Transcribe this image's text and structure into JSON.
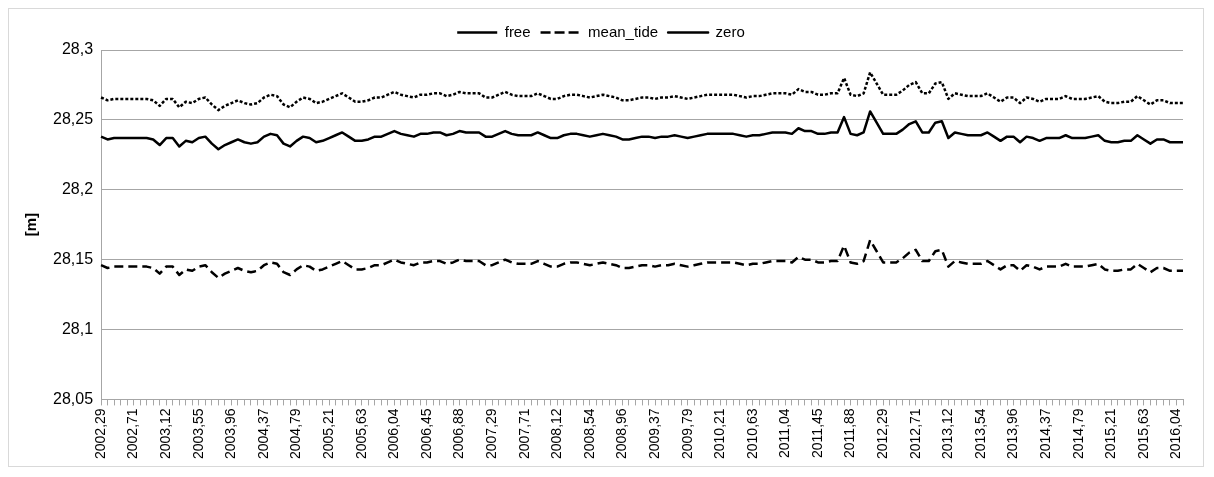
{
  "chart_data": {
    "type": "line",
    "ylabel": "[m]",
    "legend": "top",
    "grid": "y",
    "marker": "none",
    "ylim": [
      28.05,
      28.3
    ],
    "yticks": [
      {
        "value": 28.05,
        "label": "28,05"
      },
      {
        "value": 28.1,
        "label": "28,1"
      },
      {
        "value": 28.15,
        "label": "28,15"
      },
      {
        "value": 28.2,
        "label": "28,2"
      },
      {
        "value": 28.25,
        "label": "28,25"
      },
      {
        "value": 28.3,
        "label": "28,3"
      }
    ],
    "categories": [
      "2002,29",
      null,
      null,
      null,
      null,
      "2002,71",
      null,
      null,
      null,
      null,
      "2003,12",
      null,
      null,
      null,
      null,
      "2003,55",
      null,
      null,
      null,
      null,
      "2003,96",
      null,
      null,
      null,
      null,
      "2004,37",
      null,
      null,
      null,
      null,
      "2004,79",
      null,
      null,
      null,
      null,
      "2005,21",
      null,
      null,
      null,
      null,
      "2005,63",
      null,
      null,
      null,
      null,
      "2006,04",
      null,
      null,
      null,
      null,
      "2006,45",
      null,
      null,
      null,
      null,
      "2006,88",
      null,
      null,
      null,
      null,
      "2007,29",
      null,
      null,
      null,
      null,
      "2007,71",
      null,
      null,
      null,
      null,
      "2008,12",
      null,
      null,
      null,
      null,
      "2008,54",
      null,
      null,
      null,
      null,
      "2008,96",
      null,
      null,
      null,
      null,
      "2009,37",
      null,
      null,
      null,
      null,
      "2009,79",
      null,
      null,
      null,
      null,
      "2010,21",
      null,
      null,
      null,
      null,
      "2010,63",
      null,
      null,
      null,
      null,
      "2011,04",
      null,
      null,
      null,
      null,
      "2011,45",
      null,
      null,
      null,
      null,
      "2011,88",
      null,
      null,
      null,
      null,
      "2012,29",
      null,
      null,
      null,
      null,
      "2012,71",
      null,
      null,
      null,
      null,
      "2013,12",
      null,
      null,
      null,
      null,
      "2013,54",
      null,
      null,
      null,
      null,
      "2013,96",
      null,
      null,
      null,
      null,
      "2014,37",
      null,
      null,
      null,
      null,
      "2014,79",
      null,
      null,
      null,
      null,
      "2015,21",
      null,
      null,
      null,
      null,
      "2015,63",
      null,
      null,
      null,
      null,
      "2016,04",
      null
    ],
    "series": [
      {
        "name": "free",
        "color": "#000000",
        "line_style": "dotted",
        "values": [
          28.266,
          28.264,
          28.265,
          28.265,
          28.265,
          28.265,
          28.265,
          28.265,
          28.264,
          28.26,
          28.265,
          28.265,
          28.259,
          28.263,
          28.262,
          28.265,
          28.266,
          28.261,
          28.257,
          28.26,
          28.262,
          28.264,
          28.262,
          28.261,
          28.262,
          28.266,
          28.268,
          28.267,
          28.261,
          28.259,
          28.263,
          28.266,
          28.265,
          28.262,
          28.263,
          28.265,
          28.267,
          28.269,
          28.266,
          28.263,
          28.263,
          28.264,
          28.266,
          28.266,
          28.268,
          28.27,
          28.268,
          28.267,
          28.266,
          28.268,
          28.268,
          28.269,
          28.269,
          28.267,
          28.268,
          28.27,
          28.269,
          28.269,
          28.269,
          28.266,
          28.266,
          28.268,
          28.27,
          28.268,
          28.267,
          28.267,
          28.267,
          28.269,
          28.267,
          28.265,
          28.265,
          28.267,
          28.268,
          28.268,
          28.267,
          28.266,
          28.267,
          28.268,
          28.267,
          28.266,
          28.264,
          28.264,
          28.265,
          28.266,
          28.266,
          28.265,
          28.266,
          28.266,
          28.267,
          28.266,
          28.265,
          28.266,
          28.267,
          28.268,
          28.268,
          28.268,
          28.268,
          28.268,
          28.267,
          28.266,
          28.267,
          28.267,
          28.268,
          28.269,
          28.269,
          28.269,
          28.268,
          28.272,
          28.27,
          28.27,
          28.268,
          28.268,
          28.269,
          28.269,
          28.28,
          28.268,
          28.267,
          28.269,
          28.284,
          28.276,
          28.268,
          28.268,
          28.268,
          28.271,
          28.275,
          28.277,
          28.269,
          28.269,
          28.276,
          28.277,
          28.265,
          28.269,
          28.268,
          28.267,
          28.267,
          28.267,
          28.269,
          28.266,
          28.263,
          28.266,
          28.266,
          28.262,
          28.266,
          28.265,
          28.263,
          28.265,
          28.265,
          28.265,
          28.267,
          28.265,
          28.265,
          28.265,
          28.266,
          28.267,
          28.263,
          28.262,
          28.262,
          28.263,
          28.263,
          28.267,
          28.264,
          28.261,
          28.264,
          28.264,
          28.262,
          28.262,
          28.262
        ]
      },
      {
        "name": "mean_tide",
        "color": "#000000",
        "line_style": "dashed",
        "values": [
          28.146,
          28.144,
          28.145,
          28.145,
          28.145,
          28.145,
          28.145,
          28.145,
          28.144,
          28.14,
          28.145,
          28.145,
          28.139,
          28.143,
          28.142,
          28.145,
          28.146,
          28.141,
          28.137,
          28.14,
          28.142,
          28.144,
          28.142,
          28.141,
          28.142,
          28.146,
          28.148,
          28.147,
          28.141,
          28.139,
          28.143,
          28.146,
          28.145,
          28.142,
          28.143,
          28.145,
          28.147,
          28.149,
          28.146,
          28.143,
          28.143,
          28.144,
          28.146,
          28.146,
          28.148,
          28.15,
          28.148,
          28.147,
          28.146,
          28.148,
          28.148,
          28.149,
          28.149,
          28.147,
          28.148,
          28.15,
          28.149,
          28.149,
          28.149,
          28.146,
          28.146,
          28.148,
          28.15,
          28.148,
          28.147,
          28.147,
          28.147,
          28.149,
          28.147,
          28.145,
          28.145,
          28.147,
          28.148,
          28.148,
          28.147,
          28.146,
          28.147,
          28.148,
          28.147,
          28.146,
          28.144,
          28.144,
          28.145,
          28.146,
          28.146,
          28.145,
          28.146,
          28.146,
          28.147,
          28.146,
          28.145,
          28.146,
          28.147,
          28.148,
          28.148,
          28.148,
          28.148,
          28.148,
          28.147,
          28.146,
          28.147,
          28.147,
          28.148,
          28.149,
          28.149,
          28.149,
          28.148,
          28.152,
          28.15,
          28.15,
          28.148,
          28.148,
          28.149,
          28.149,
          28.16,
          28.148,
          28.147,
          28.149,
          28.164,
          28.156,
          28.148,
          28.148,
          28.148,
          28.151,
          28.155,
          28.157,
          28.149,
          28.149,
          28.156,
          28.157,
          28.145,
          28.149,
          28.148,
          28.147,
          28.147,
          28.147,
          28.149,
          28.146,
          28.143,
          28.146,
          28.146,
          28.142,
          28.146,
          28.145,
          28.143,
          28.145,
          28.145,
          28.145,
          28.147,
          28.145,
          28.145,
          28.145,
          28.146,
          28.147,
          28.143,
          28.142,
          28.142,
          28.143,
          28.143,
          28.147,
          28.144,
          28.141,
          28.144,
          28.144,
          28.142,
          28.142,
          28.142
        ]
      },
      {
        "name": "zero",
        "color": "#000000",
        "line_style": "solid",
        "values": [
          28.238,
          28.236,
          28.237,
          28.237,
          28.237,
          28.237,
          28.237,
          28.237,
          28.236,
          28.232,
          28.237,
          28.237,
          28.231,
          28.235,
          28.234,
          28.237,
          28.238,
          28.233,
          28.229,
          28.232,
          28.234,
          28.236,
          28.234,
          28.233,
          28.234,
          28.238,
          28.24,
          28.239,
          28.233,
          28.231,
          28.235,
          28.238,
          28.237,
          28.234,
          28.235,
          28.237,
          28.239,
          28.241,
          28.238,
          28.235,
          28.235,
          28.236,
          28.238,
          28.238,
          28.24,
          28.242,
          28.24,
          28.239,
          28.238,
          28.24,
          28.24,
          28.241,
          28.241,
          28.239,
          28.24,
          28.242,
          28.241,
          28.241,
          28.241,
          28.238,
          28.238,
          28.24,
          28.242,
          28.24,
          28.239,
          28.239,
          28.239,
          28.241,
          28.239,
          28.237,
          28.237,
          28.239,
          28.24,
          28.24,
          28.239,
          28.238,
          28.239,
          28.24,
          28.239,
          28.238,
          28.236,
          28.236,
          28.237,
          28.238,
          28.238,
          28.237,
          28.238,
          28.238,
          28.239,
          28.238,
          28.237,
          28.238,
          28.239,
          28.24,
          28.24,
          28.24,
          28.24,
          28.24,
          28.239,
          28.238,
          28.239,
          28.239,
          28.24,
          28.241,
          28.241,
          28.241,
          28.24,
          28.244,
          28.242,
          28.242,
          28.24,
          28.24,
          28.241,
          28.241,
          28.252,
          28.24,
          28.239,
          28.241,
          28.256,
          28.248,
          28.24,
          28.24,
          28.24,
          28.243,
          28.247,
          28.249,
          28.241,
          28.241,
          28.248,
          28.249,
          28.237,
          28.241,
          28.24,
          28.239,
          28.239,
          28.239,
          28.241,
          28.238,
          28.235,
          28.238,
          28.238,
          28.234,
          28.238,
          28.237,
          28.235,
          28.237,
          28.237,
          28.237,
          28.239,
          28.237,
          28.237,
          28.237,
          28.238,
          28.239,
          28.235,
          28.234,
          28.234,
          28.235,
          28.235,
          28.239,
          28.236,
          28.233,
          28.236,
          28.236,
          28.234,
          28.234,
          28.234
        ]
      }
    ]
  }
}
